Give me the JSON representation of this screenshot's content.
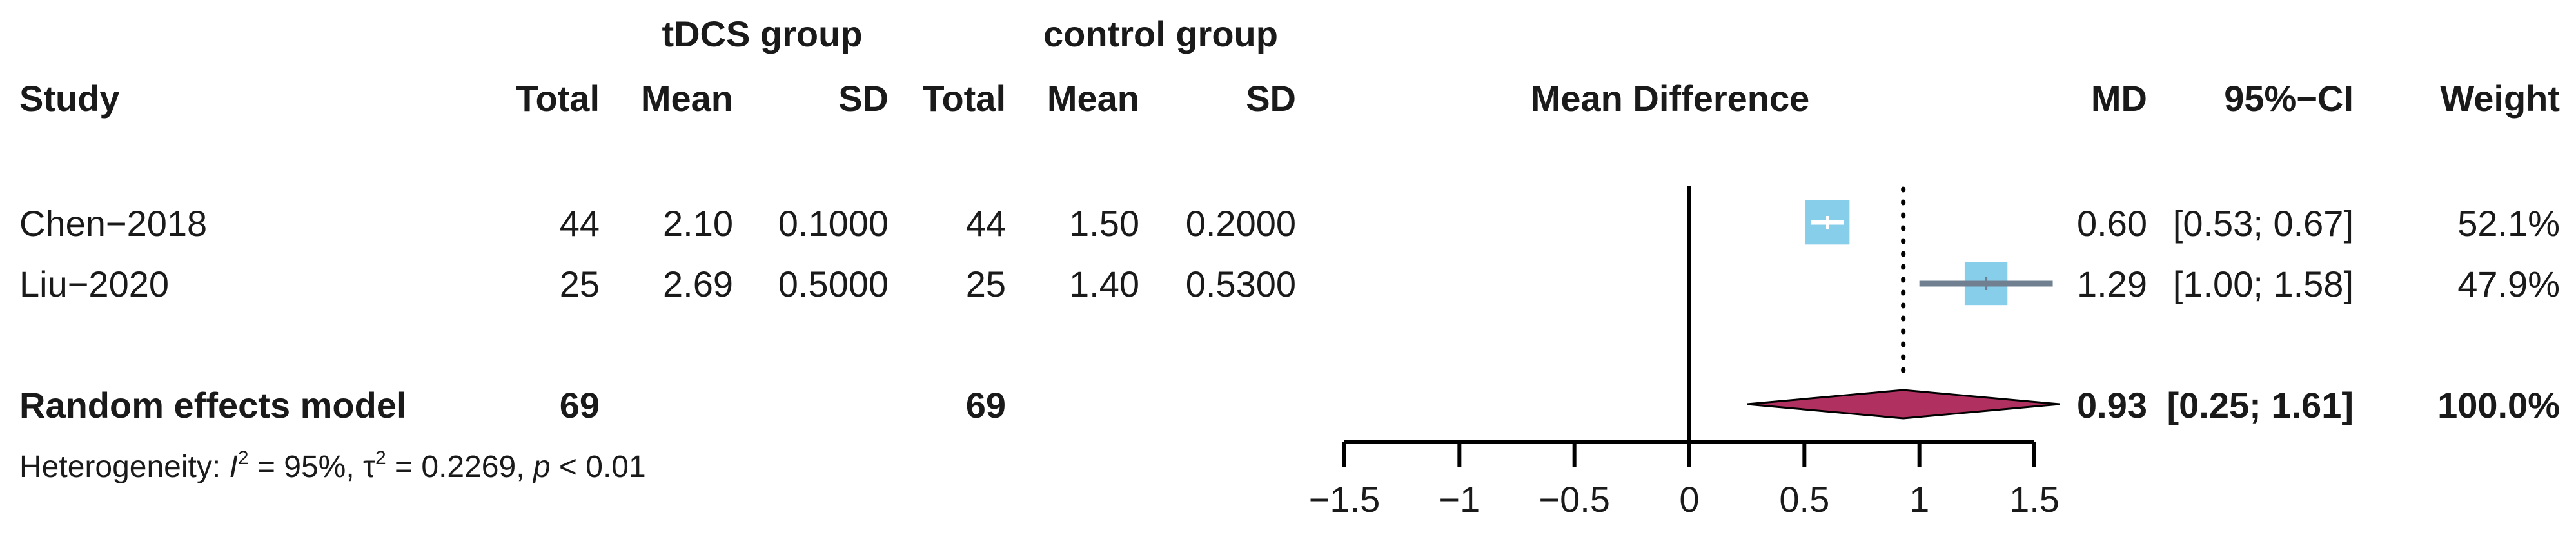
{
  "headers": {
    "group1": "tDCS group",
    "group2": "control group",
    "study": "Study",
    "total1": "Total",
    "mean1": "Mean",
    "sd1": "SD",
    "total2": "Total",
    "mean2": "Mean",
    "sd2": "SD",
    "effect": "Mean Difference",
    "md": "MD",
    "ci": "95%−CI",
    "weight": "Weight"
  },
  "heterogeneity": {
    "prefix": "Heterogeneity: ",
    "i2_symbol": "I",
    "i2_value": " = 95%, ",
    "tau_symbol": "τ",
    "tau_value": " = 0.2269, ",
    "p_symbol": "p",
    "p_value": " < 0.01"
  },
  "colors": {
    "square": "#87ceeb",
    "diamond": "#b03060",
    "ci_line": "#708090",
    "text": "#1a1a1a"
  },
  "chart_data": {
    "type": "forest",
    "x_ticks": [
      -1.5,
      -1,
      -0.5,
      0,
      0.5,
      1,
      1.5
    ],
    "x_tick_labels": [
      "−1.5",
      "−1",
      "−0.5",
      "0",
      "0.5",
      "1",
      "1.5"
    ],
    "xlim": [
      -1.5,
      1.5
    ],
    "null_line": 0,
    "pooled_line": 0.93,
    "studies": [
      {
        "study": "Chen−2018",
        "total1": "44",
        "mean1": "2.10",
        "sd1": "0.1000",
        "total2": "44",
        "mean2": "1.50",
        "sd2": "0.2000",
        "md": 0.6,
        "ci_low": 0.53,
        "ci_high": 0.67,
        "md_text": "0.60",
        "ci_text": "[0.53; 0.67]",
        "weight_text": "52.1%",
        "weight": 52.1
      },
      {
        "study": "Liu−2020",
        "total1": "25",
        "mean1": "2.69",
        "sd1": "0.5000",
        "total2": "25",
        "mean2": "1.40",
        "sd2": "0.5300",
        "md": 1.29,
        "ci_low": 1.0,
        "ci_high": 1.58,
        "md_text": "1.29",
        "ci_text": "[1.00; 1.58]",
        "weight_text": "47.9%",
        "weight": 47.9
      }
    ],
    "pooled": {
      "label": "Random effects model",
      "total1": "69",
      "total2": "69",
      "md": 0.93,
      "ci_low": 0.25,
      "ci_high": 1.61,
      "md_text": "0.93",
      "ci_text": "[0.25; 1.61]",
      "weight_text": "100.0%"
    }
  }
}
